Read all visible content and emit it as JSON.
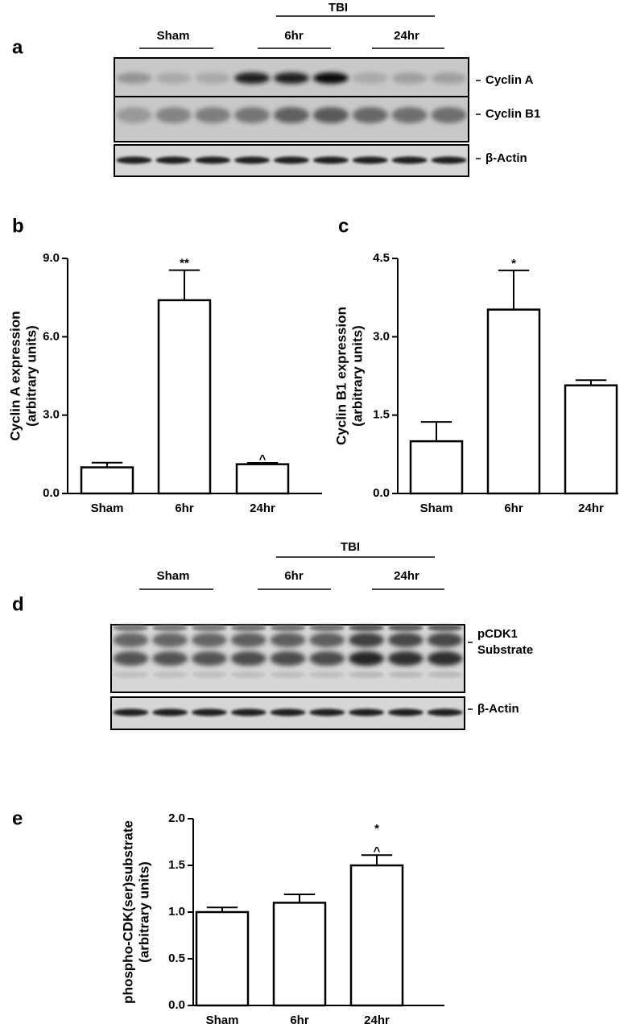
{
  "blots": [
    {
      "panel": "a",
      "group_label": "TBI",
      "groups": [
        "Sham",
        "6hr",
        "24hr"
      ],
      "bands": [
        [
          "Cyclin A"
        ],
        [
          "Cyclin B1"
        ],
        [
          "β-Actin"
        ]
      ]
    },
    {
      "panel": "d",
      "group_label": "TBI",
      "groups": [
        "Sham",
        "6hr",
        "24hr"
      ],
      "bands": [
        [
          "pCDK1",
          "Substrate"
        ],
        [
          "β-Actin"
        ]
      ]
    }
  ],
  "chart_data": [
    {
      "type": "bar",
      "panel": "b",
      "y_label": [
        "Cyclin A expression",
        "(arbitrary units)"
      ],
      "categories": [
        "Sham",
        "6hr",
        "24hr"
      ],
      "values": [
        1.0,
        7.4,
        1.12
      ],
      "errors": [
        0.18,
        1.15,
        0.05
      ],
      "color": "#ffffff",
      "ylim": [
        0,
        9
      ],
      "yticks": [
        {
          "value": 0,
          "label": "0.0"
        },
        {
          "value": 3,
          "label": "3.0"
        },
        {
          "value": 6,
          "label": "6.0"
        },
        {
          "value": 9,
          "label": "9.0"
        }
      ],
      "annotations": [
        {
          "at": "6hr",
          "text": "**"
        },
        {
          "at": "24hr",
          "text": "^"
        }
      ]
    },
    {
      "type": "bar",
      "panel": "c",
      "y_label": [
        "Cyclin B1 expression",
        "(arbitrary units)"
      ],
      "categories": [
        "Sham",
        "6hr",
        "24hr"
      ],
      "values": [
        1.0,
        3.52,
        2.07
      ],
      "errors": [
        0.37,
        0.75,
        0.1
      ],
      "color": "#ffffff",
      "ylim": [
        0,
        4.5
      ],
      "yticks": [
        {
          "value": 0,
          "label": "0.0"
        },
        {
          "value": 1.5,
          "label": "1.5"
        },
        {
          "value": 3,
          "label": "3.0"
        },
        {
          "value": 4.5,
          "label": "4.5"
        }
      ],
      "annotations": [
        {
          "at": "6hr",
          "text": "*"
        }
      ]
    },
    {
      "type": "bar",
      "panel": "e",
      "y_label": [
        "phospho-CDK(ser)substrate",
        "(arbitrary units)"
      ],
      "categories": [
        "Sham",
        "6hr",
        "24hr"
      ],
      "values": [
        1.0,
        1.1,
        1.5
      ],
      "errors": [
        0.05,
        0.09,
        0.11
      ],
      "color": "#ffffff",
      "ylim": [
        0,
        2
      ],
      "yticks": [
        {
          "value": 0,
          "label": "0.0"
        },
        {
          "value": 0.5,
          "label": "0.5"
        },
        {
          "value": 1,
          "label": "1.0"
        },
        {
          "value": 1.5,
          "label": "1.5"
        },
        {
          "value": 2,
          "label": "2.0"
        }
      ],
      "annotations": [
        {
          "at": "24hr",
          "text": "^"
        },
        {
          "at": "24hr",
          "text": "*"
        }
      ]
    }
  ]
}
